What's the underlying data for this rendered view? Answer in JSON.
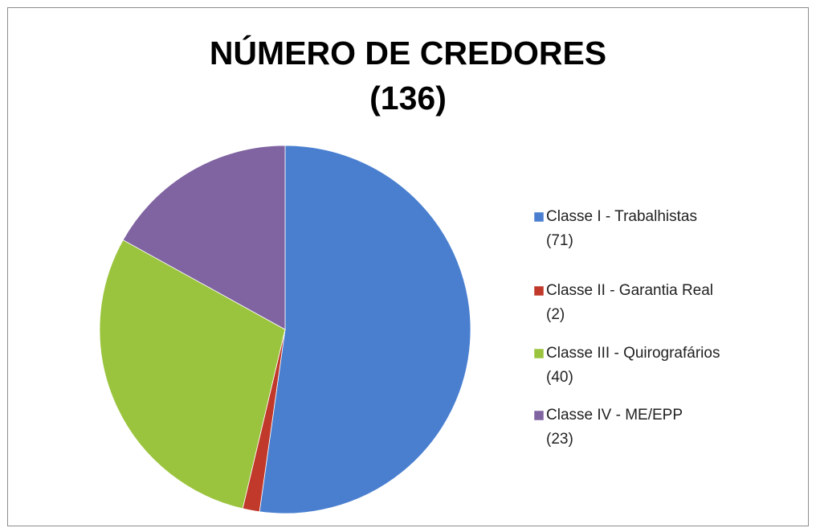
{
  "chart_data": {
    "type": "pie",
    "title": "NÚMERO DE CREDORES (136)",
    "categories": [
      "Classe I - Trabalhistas",
      "Classe II - Garantia Real",
      "Classe III - Quirografários",
      "Classe IV - ME/EPP"
    ],
    "values": [
      71,
      2,
      40,
      23
    ],
    "value_labels": [
      "(71)",
      "(2)",
      "(40)",
      "(23)"
    ],
    "colors": [
      "#4a7fd0",
      "#c0392b",
      "#9bc43e",
      "#8064a2"
    ],
    "legend": "right"
  }
}
